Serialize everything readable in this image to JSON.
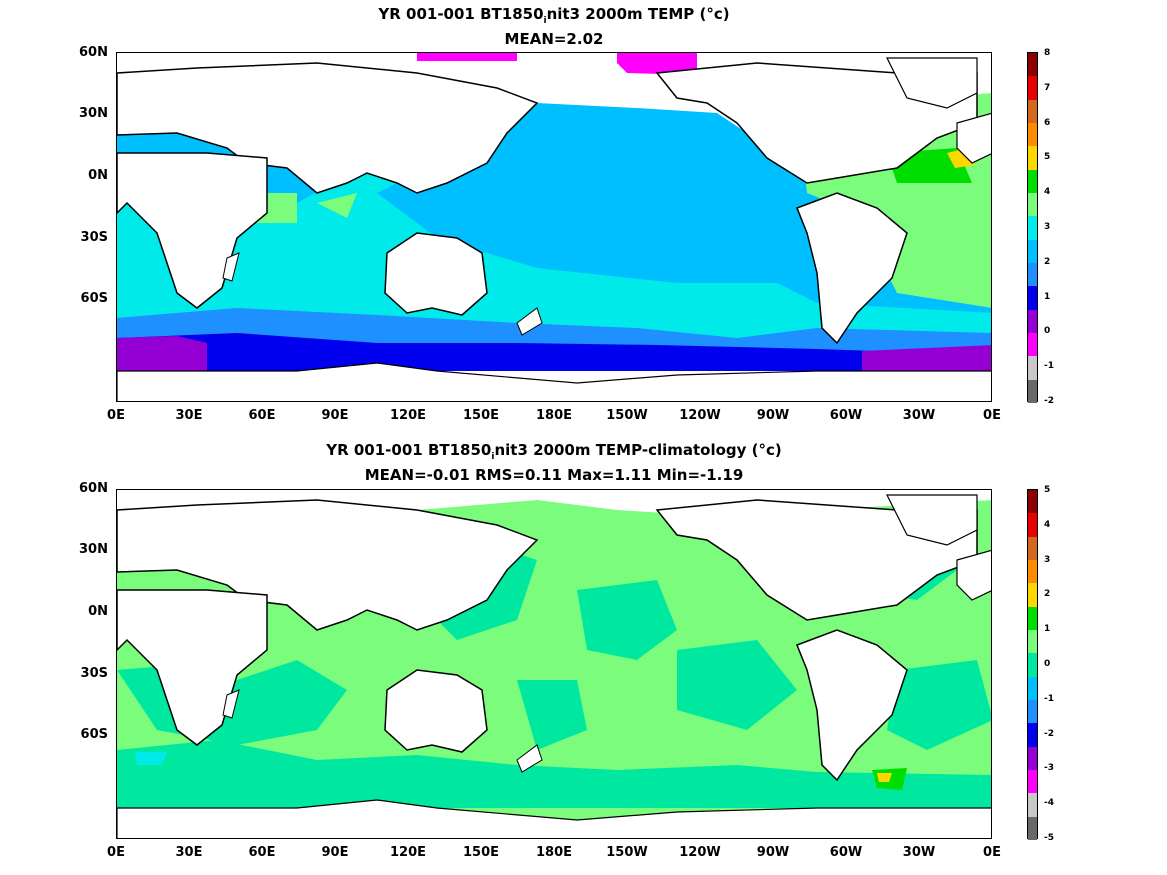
{
  "panels": [
    {
      "title_main": "YR 001-001 BT1850",
      "title_sub": "i",
      "title_rest": "nit3 2000m TEMP (°c)",
      "stats": "MEAN=2.02",
      "colorbar": {
        "labels": [
          "8",
          "7",
          "6",
          "5",
          "4",
          "3",
          "2",
          "1",
          "0",
          "-1",
          "-2"
        ],
        "colors": [
          "#8b0000",
          "#e60000",
          "#d2691e",
          "#ff8c00",
          "#ffd700",
          "#00dd00",
          "#7cfc7c",
          "#00eaea",
          "#00bfff",
          "#1e90ff",
          "#0000ee",
          "#9400d3",
          "#ff00ff",
          "#c8c8c8",
          "#696969"
        ]
      }
    },
    {
      "title_main": "YR 001-001 BT1850",
      "title_sub": "i",
      "title_rest": "nit3 2000m TEMP-climatology (°c)",
      "stats": "MEAN=-0.01   RMS=0.11   Max=1.11   Min=-1.19",
      "colorbar": {
        "labels": [
          "5",
          "4",
          "3",
          "2",
          "1",
          "0",
          "-1",
          "-2",
          "-3",
          "-4",
          "-5"
        ],
        "colors": [
          "#8b0000",
          "#e60000",
          "#d2691e",
          "#ff8c00",
          "#ffd700",
          "#00dd00",
          "#7cfc7c",
          "#00e8a0",
          "#00bfff",
          "#1e90ff",
          "#0000ee",
          "#9400d3",
          "#ff00ff",
          "#c8c8c8",
          "#696969"
        ]
      }
    }
  ],
  "axes": {
    "lat_labels": [
      "60N",
      "30N",
      "0N",
      "30S",
      "60S"
    ],
    "lon_labels": [
      "0E",
      "30E",
      "60E",
      "90E",
      "120E",
      "150E",
      "180E",
      "150W",
      "120W",
      "90W",
      "60W",
      "30W",
      "0E"
    ]
  }
}
